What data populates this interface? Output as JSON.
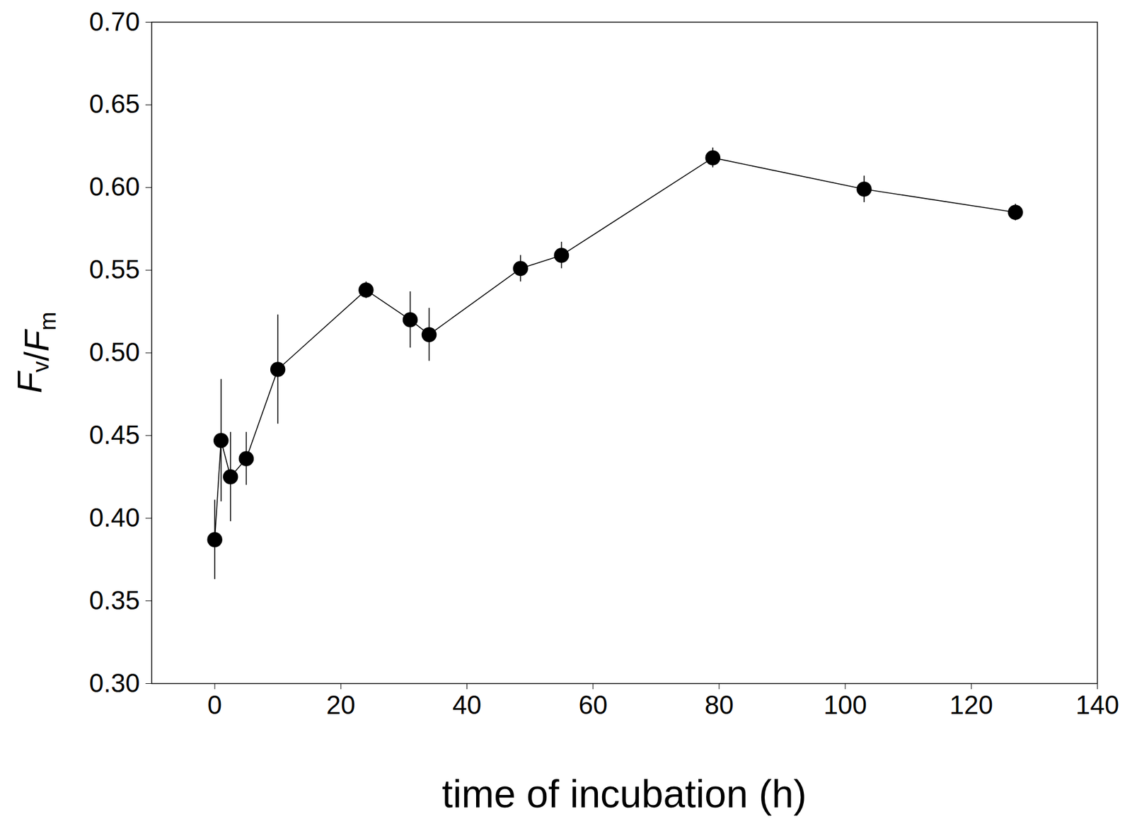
{
  "chart_data": {
    "type": "line",
    "xlabel": "time of incubation (h)",
    "ylabel": "Fv/Fm",
    "x": [
      0,
      1,
      2.5,
      5,
      10,
      24,
      31,
      34,
      48.5,
      55,
      79,
      103,
      127
    ],
    "values": [
      0.387,
      0.447,
      0.425,
      0.436,
      0.49,
      0.538,
      0.52,
      0.511,
      0.551,
      0.559,
      0.618,
      0.599,
      0.585
    ],
    "errors": [
      0.024,
      0.037,
      0.027,
      0.016,
      0.033,
      0.005,
      0.017,
      0.016,
      0.008,
      0.008,
      0.006,
      0.008,
      0.005
    ],
    "color": "#000000",
    "marker": "circle",
    "line_style": "solid",
    "xlim": [
      -10,
      140
    ],
    "xticks": [
      0,
      20,
      40,
      60,
      80,
      100,
      120,
      140
    ],
    "ylim": [
      0.3,
      0.7
    ],
    "yticks": [
      {
        "value": 0.3,
        "label": "0.30"
      },
      {
        "value": 0.35,
        "label": "0.35"
      },
      {
        "value": 0.4,
        "label": "0.40"
      },
      {
        "value": 0.45,
        "label": "0.45"
      },
      {
        "value": 0.5,
        "label": "0.50"
      },
      {
        "value": 0.55,
        "label": "0.55"
      },
      {
        "value": 0.6,
        "label": "0.60"
      },
      {
        "value": 0.65,
        "label": "0.65"
      },
      {
        "value": 0.7,
        "label": "0.70"
      }
    ],
    "grid": false
  }
}
